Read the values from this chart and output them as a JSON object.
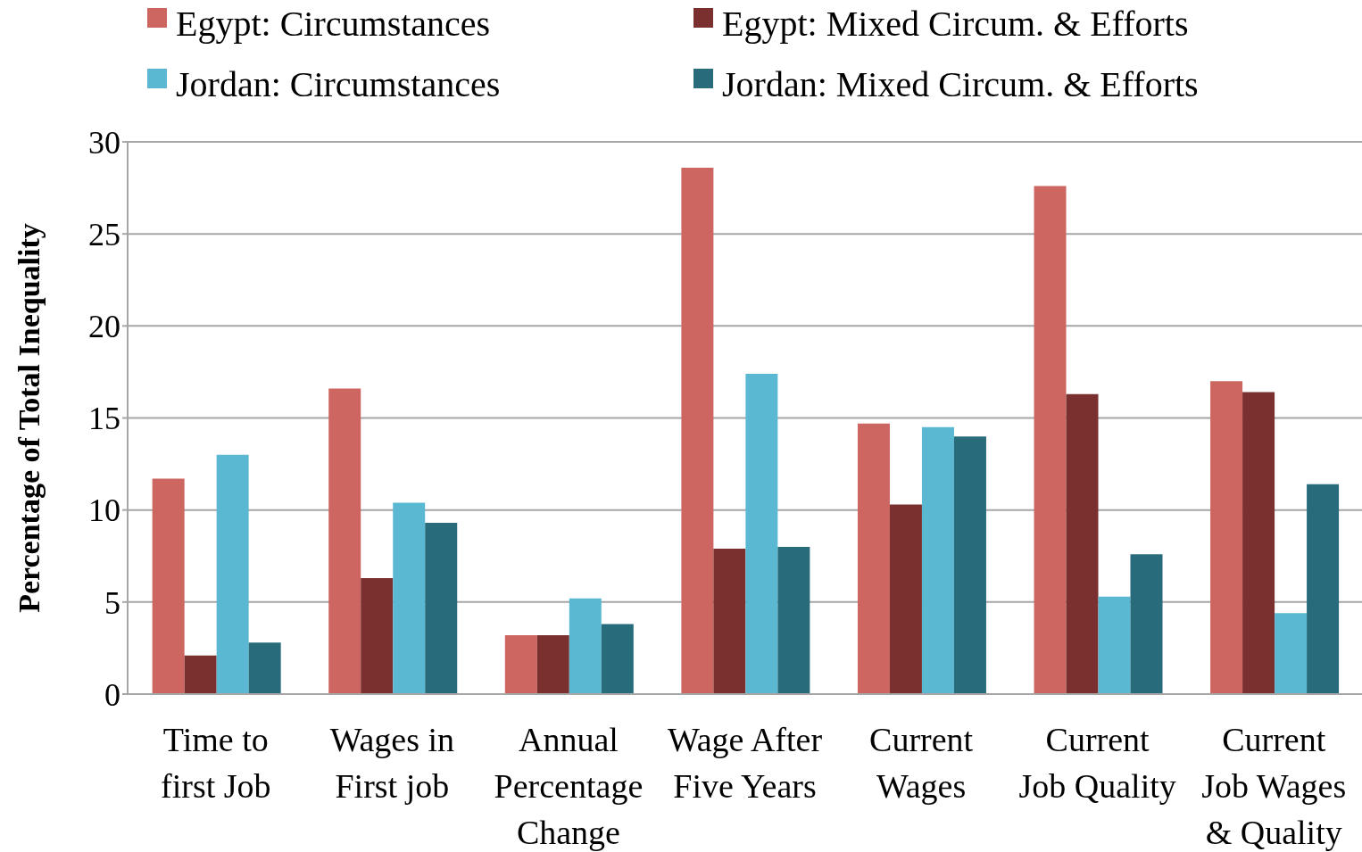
{
  "chart_data": {
    "type": "bar",
    "ylabel": "Percentage of Total Inequality",
    "categories": [
      "Time to\nfirst Job",
      "Wages in\nFirst job",
      "Annual\nPercentage\nChange",
      "Wage After\nFive Years",
      "Current\nWages",
      "Current\nJob Quality",
      "Current\nJob Wages\n& Quality"
    ],
    "series": [
      {
        "name": "Egypt: Circumstances",
        "color": "#cd6660",
        "values": [
          11.7,
          16.6,
          3.2,
          28.6,
          14.7,
          27.6,
          17.0
        ]
      },
      {
        "name": "Egypt: Mixed Circum. & Efforts",
        "color": "#7a302e",
        "values": [
          2.1,
          6.3,
          3.2,
          7.9,
          10.3,
          16.3,
          16.4
        ]
      },
      {
        "name": "Jordan: Circumstances",
        "color": "#5bb8d2",
        "values": [
          13.0,
          10.4,
          5.2,
          17.4,
          14.5,
          5.3,
          4.4
        ]
      },
      {
        "name": "Jordan: Mixed Circum. & Efforts",
        "color": "#286c7c",
        "values": [
          2.8,
          9.3,
          3.8,
          8.0,
          14.0,
          7.6,
          11.4
        ]
      }
    ],
    "ylim": [
      0,
      30
    ],
    "yticks": [
      0,
      5,
      10,
      15,
      20,
      25,
      30
    ],
    "grid": "y",
    "legend": "top"
  }
}
